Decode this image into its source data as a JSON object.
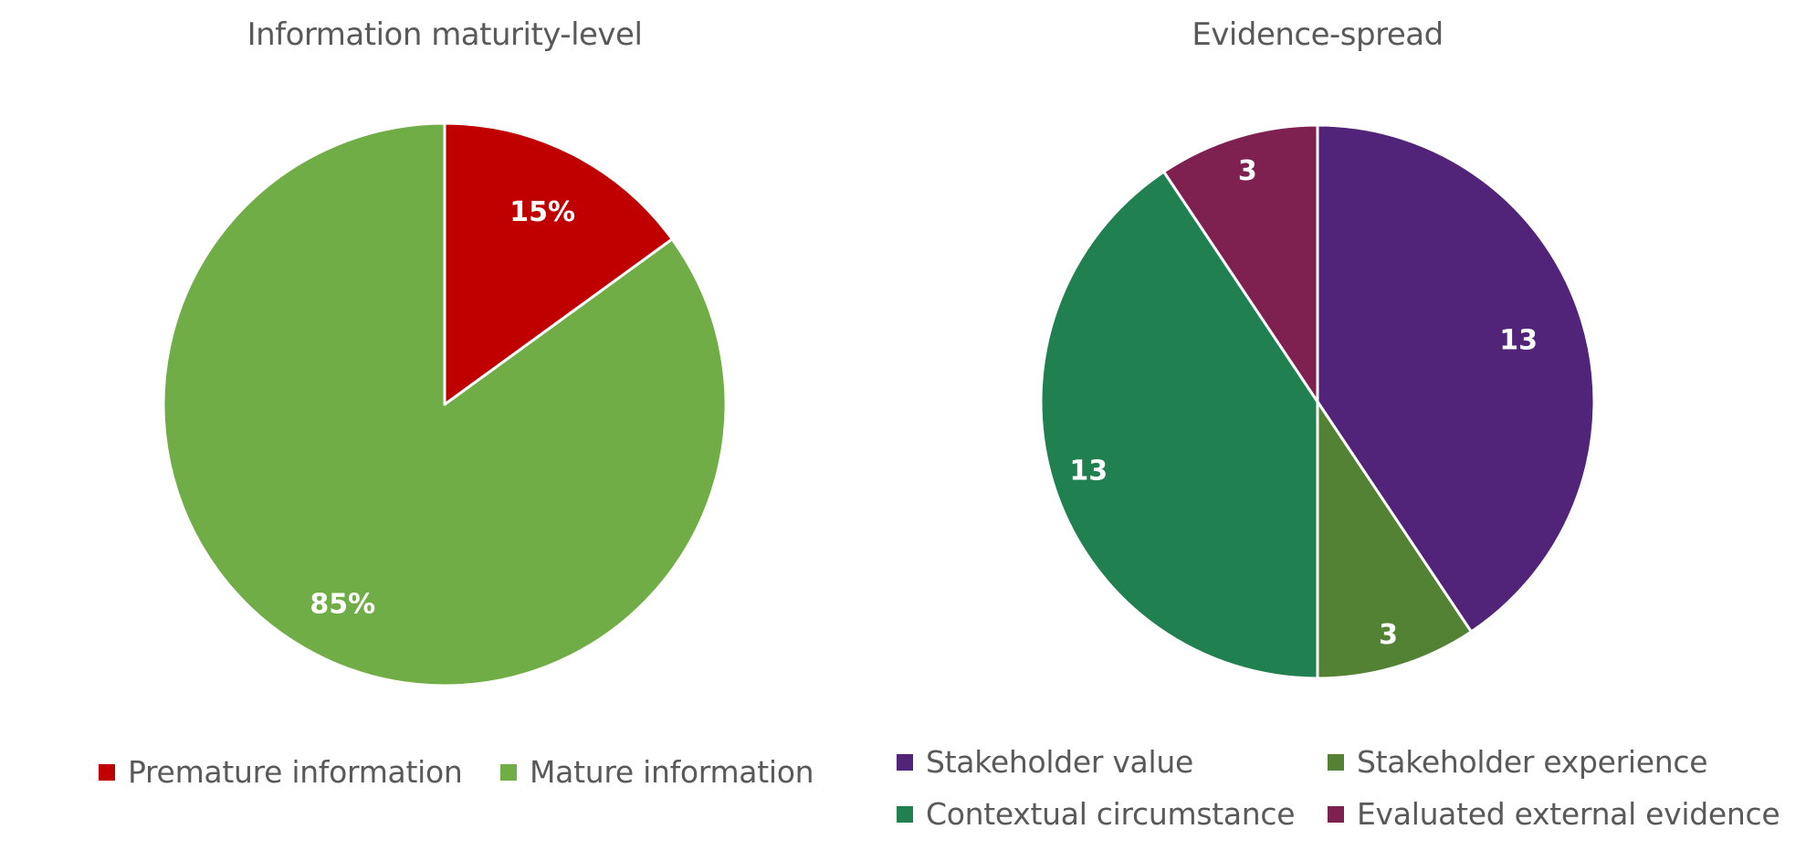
{
  "chart_data": [
    {
      "type": "pie",
      "title": "Information maturity-level",
      "categories": [
        "Premature information",
        "Mature information"
      ],
      "values": [
        15,
        85
      ],
      "data_labels": [
        "15%",
        "85%"
      ],
      "colors": [
        "#C00000",
        "#70AD47"
      ],
      "legend_position": "bottom",
      "slice_order": "clockwise-from-top"
    },
    {
      "type": "pie",
      "title": "Evidence-spread",
      "categories": [
        "Stakeholder value",
        "Stakeholder experience",
        "Contextual circumstance",
        "Evaluated external evidence"
      ],
      "values": [
        13,
        3,
        13,
        3
      ],
      "data_labels": [
        "13",
        "3",
        "13",
        "3"
      ],
      "colors": [
        "#512479",
        "#548235",
        "#218050",
        "#7E2150"
      ],
      "legend_position": "bottom",
      "slice_order": "clockwise-from-top"
    }
  ]
}
